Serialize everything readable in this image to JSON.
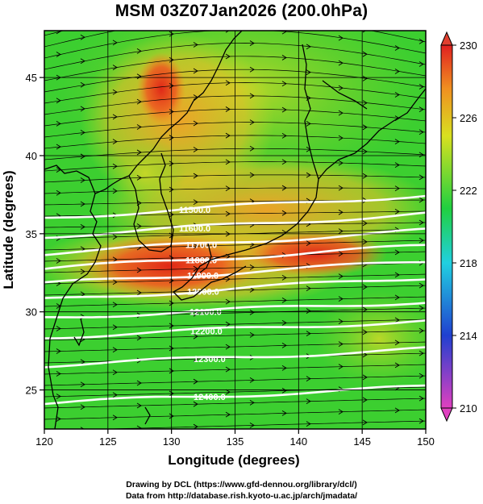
{
  "figure": {
    "title": "MSM 03Z07Jan2026 (200.0hPa)",
    "xlabel": "Longitude (degrees)",
    "ylabel": "Latitude  (degrees)",
    "xticks": [
      "120",
      "125",
      "130",
      "135",
      "140",
      "145",
      "150"
    ],
    "yticks": [
      "25",
      "30",
      "35",
      "40",
      "45"
    ],
    "colorbar_ticks": [
      "230",
      "226",
      "222",
      "218",
      "214",
      "210"
    ],
    "contour_labels": [
      "11500.0",
      "11600.0",
      "11700.0",
      "11800.0",
      "11900.0",
      "12000.0",
      "12100.0",
      "12200.0",
      "12300.0",
      "12400.0"
    ],
    "footer_line1": "Drawing by DCL (https://www.gfd-dennou.org/library/dcl/)",
    "footer_line2": "Data from http://database.rish.kyoto-u.ac.jp/arch/jmadata/"
  },
  "map": {
    "lon_range": [
      120,
      150
    ],
    "lat_range": [
      22.5,
      48
    ],
    "colorbar_range": [
      210,
      230
    ],
    "colorbar_colors": [
      "#e040c0",
      "#2040d0",
      "#20d0e0",
      "#20d040",
      "#d8e020",
      "#f09020",
      "#e02020"
    ],
    "field_colors": {
      "background": "#40d030",
      "warm": "#f07020",
      "hot": "#e83020",
      "mid": "#c8d828"
    }
  }
}
